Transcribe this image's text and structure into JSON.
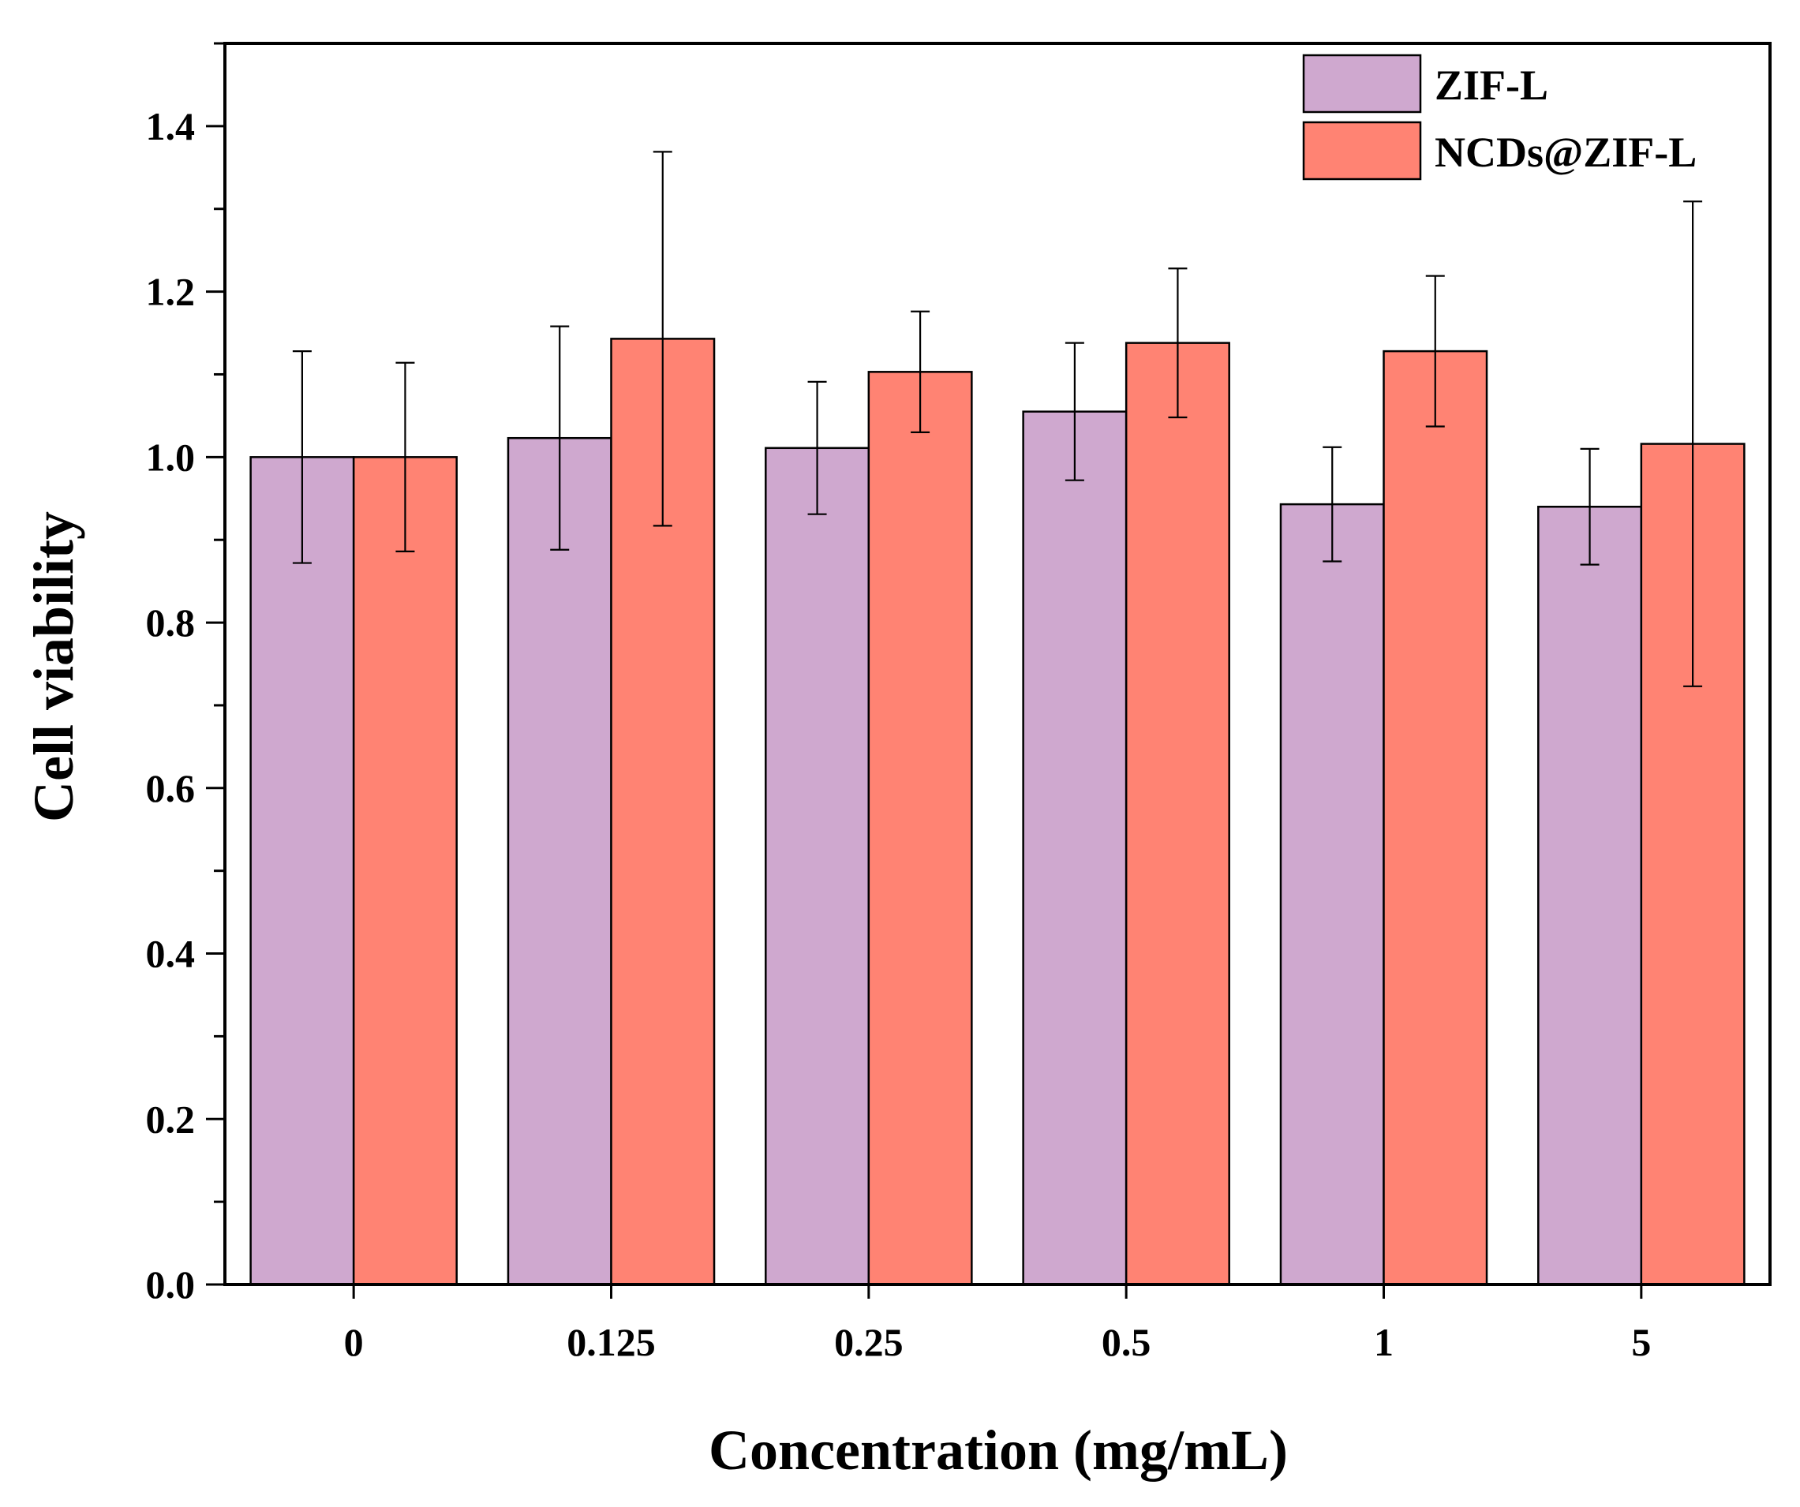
{
  "chart_data": {
    "type": "bar",
    "title": "",
    "xlabel": "Concentration (mg/mL)",
    "ylabel": "Cell viability",
    "ylim": [
      0,
      1.5
    ],
    "yticks": [
      "0.0",
      "0.2",
      "0.4",
      "0.6",
      "0.8",
      "1.0",
      "1.2",
      "1.4"
    ],
    "categories": [
      "0",
      "0.125",
      "0.25",
      "0.5",
      "1",
      "5"
    ],
    "legend_position": "top-right",
    "series": [
      {
        "name": "ZIF-L",
        "color": "#CFA8CF",
        "values": [
          1.0,
          1.023,
          1.011,
          1.055,
          0.943,
          0.94
        ],
        "errors": [
          0.128,
          0.135,
          0.08,
          0.083,
          0.069,
          0.07
        ]
      },
      {
        "name": "NCDs@ZIF-L",
        "color": "#FF8373",
        "values": [
          1.0,
          1.143,
          1.103,
          1.138,
          1.128,
          1.016
        ],
        "errors": [
          0.114,
          0.226,
          0.073,
          0.09,
          0.091,
          0.293
        ]
      }
    ]
  }
}
